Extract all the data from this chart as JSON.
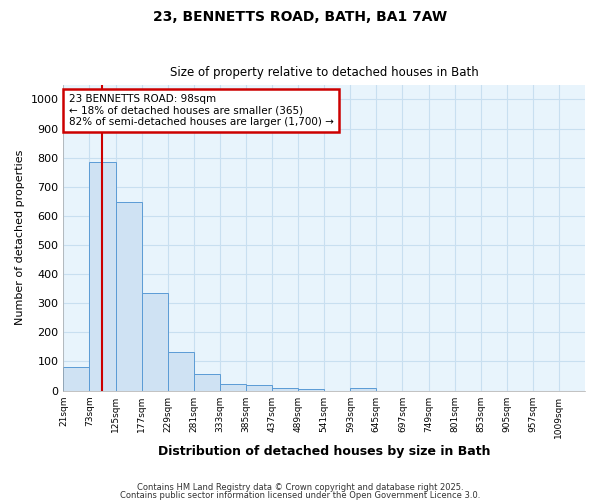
{
  "title1": "23, BENNETTS ROAD, BATH, BA1 7AW",
  "title2": "Size of property relative to detached houses in Bath",
  "xlabel": "Distribution of detached houses by size in Bath",
  "ylabel": "Number of detached properties",
  "bar_color": "#cfe2f3",
  "bar_edge_color": "#5b9bd5",
  "bins": [
    21,
    73,
    125,
    177,
    229,
    281,
    333,
    385,
    437,
    489,
    541,
    593,
    645,
    697,
    749,
    801,
    853,
    905,
    957,
    1009,
    1061
  ],
  "counts": [
    80,
    785,
    648,
    335,
    133,
    57,
    22,
    18,
    8,
    5,
    0,
    8,
    0,
    0,
    0,
    0,
    0,
    0,
    0,
    0
  ],
  "property_sqm": 98,
  "ylim": [
    0,
    1050
  ],
  "yticks": [
    0,
    100,
    200,
    300,
    400,
    500,
    600,
    700,
    800,
    900,
    1000
  ],
  "annotation_title": "23 BENNETTS ROAD: 98sqm",
  "annotation_line1": "← 18% of detached houses are smaller (365)",
  "annotation_line2": "82% of semi-detached houses are larger (1,700) →",
  "annotation_box_color": "#cc0000",
  "plot_bg_color": "#e8f4fc",
  "fig_bg_color": "#ffffff",
  "grid_color": "#c8dff0",
  "footer1": "Contains HM Land Registry data © Crown copyright and database right 2025.",
  "footer2": "Contains public sector information licensed under the Open Government Licence 3.0."
}
